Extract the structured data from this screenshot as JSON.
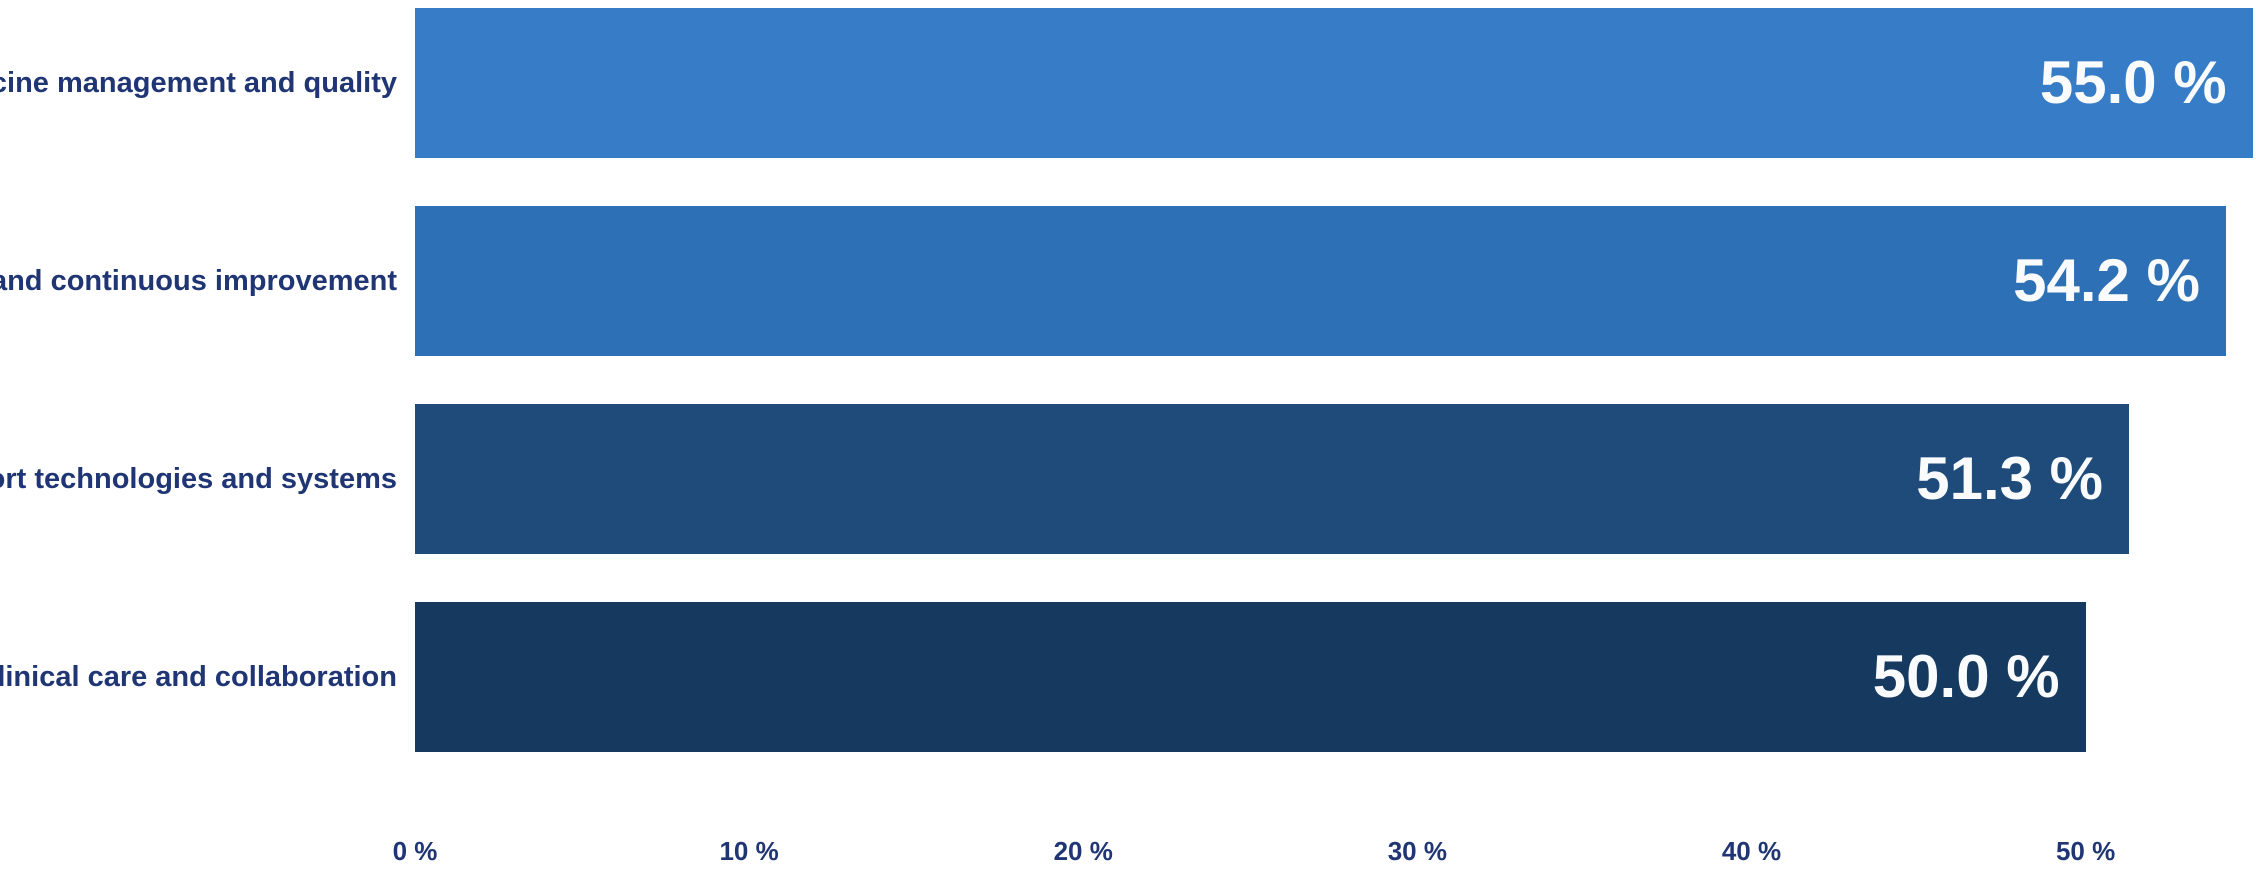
{
  "chart_data": {
    "type": "bar",
    "orientation": "horizontal",
    "title": "",
    "xlabel": "",
    "ylabel": "",
    "grid": false,
    "legend": false,
    "background": "#FFFFFF",
    "text_color": "#1F3574",
    "value_label_color": "#FAFBFD",
    "categories": [
      "Medicine management and quality",
      "Safety and continuous improvement",
      "Support technologies and systems",
      "Clinical care and collaboration"
    ],
    "values": [
      55.0,
      54.2,
      51.3,
      50.0
    ],
    "value_labels": [
      "55.0 %",
      "54.2 %",
      "51.3 %",
      "50.0 %"
    ],
    "bar_colors": [
      "#377CC6",
      "#2E70B5",
      "#1E4B7A",
      "#163A5F"
    ],
    "x_axis": {
      "max": 55.1,
      "ticks": [
        0,
        10,
        20,
        30,
        40,
        50
      ],
      "tick_labels": [
        "0 %",
        "10 %",
        "20 %",
        "30 %",
        "40 %",
        "50 %"
      ]
    }
  }
}
